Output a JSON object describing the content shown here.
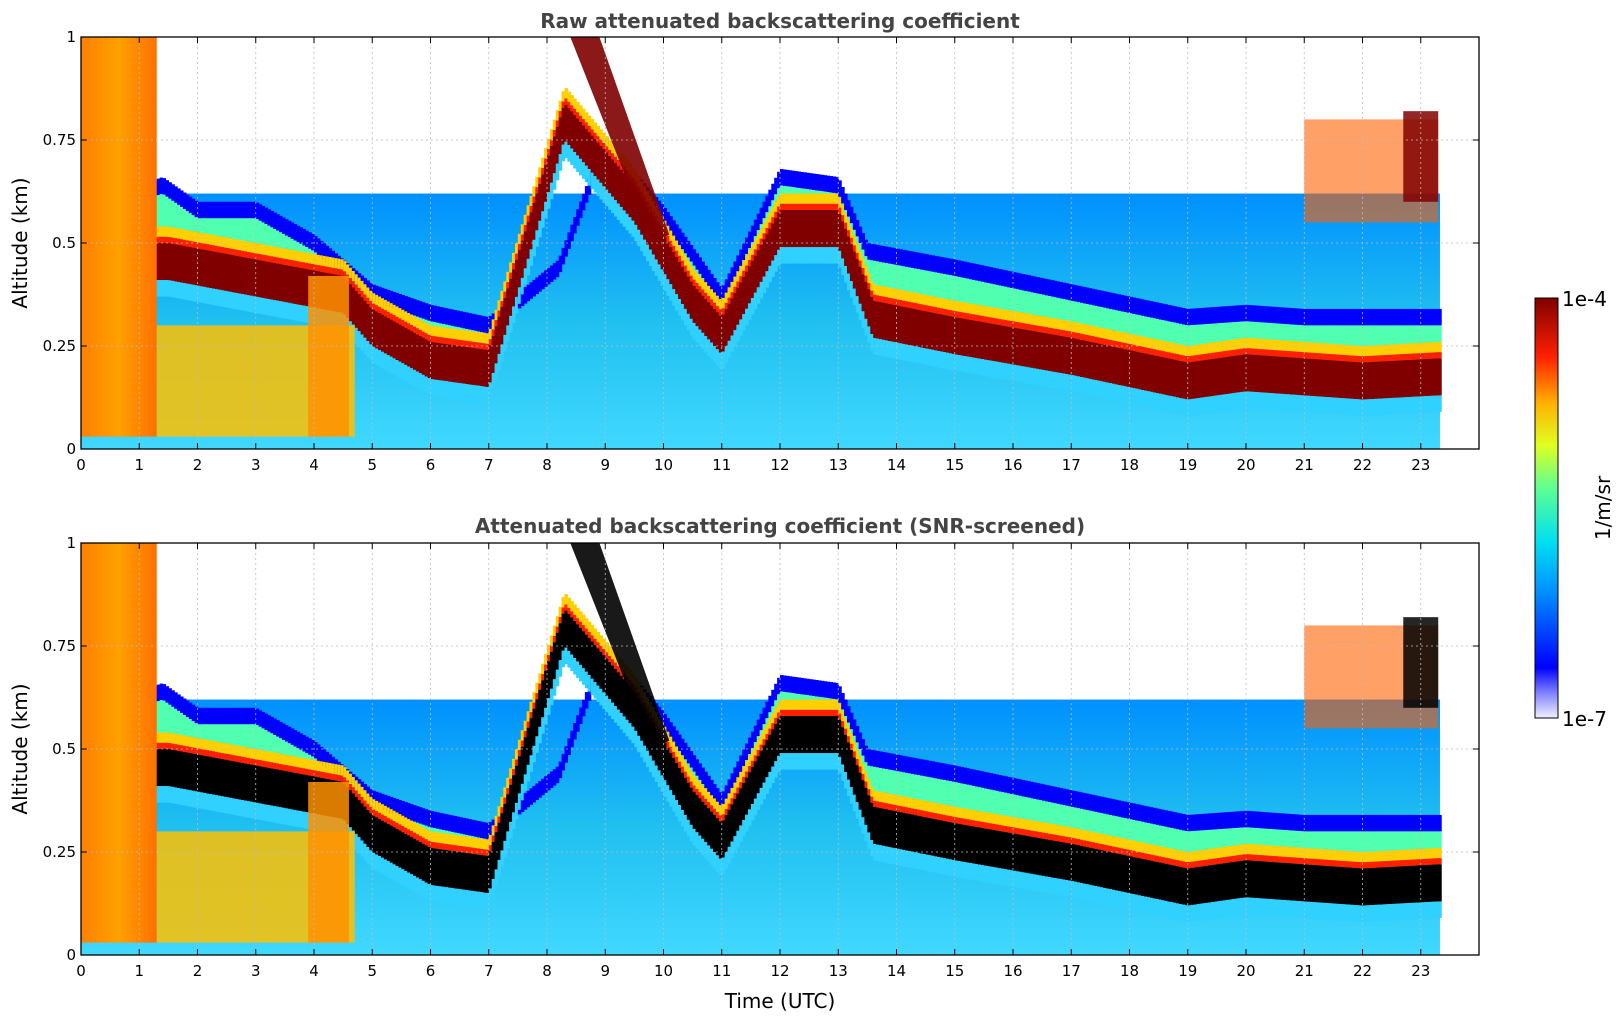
{
  "chart_data": [
    {
      "type": "heatmap",
      "title": "Raw attenuated backscattering coefficient",
      "xlabel": "",
      "ylabel": "Altitude (km)",
      "xlim": [
        0,
        24
      ],
      "ylim": [
        0,
        1
      ],
      "x_ticks": [
        0,
        1,
        2,
        3,
        4,
        5,
        6,
        7,
        8,
        9,
        10,
        11,
        12,
        13,
        14,
        15,
        16,
        17,
        18,
        19,
        20,
        21,
        22,
        23
      ],
      "y_ticks": [
        0,
        0.25,
        0.5,
        0.75,
        1
      ],
      "y_tick_labels": [
        "0",
        "0.25",
        "0.5",
        "0.75",
        "1"
      ],
      "grid": true,
      "data_end_hour": 23.33,
      "layer_top_km": [
        [
          0,
          0.55
        ],
        [
          1.4,
          0.62
        ],
        [
          2,
          0.56
        ],
        [
          3,
          0.56
        ],
        [
          4,
          0.48
        ],
        [
          5,
          0.36
        ],
        [
          6,
          0.31
        ],
        [
          7,
          0.28
        ],
        [
          8.2,
          0.42
        ],
        [
          9,
          0.72
        ],
        [
          10,
          0.55
        ],
        [
          11,
          0.35
        ],
        [
          12,
          0.64
        ],
        [
          13,
          0.62
        ],
        [
          13.5,
          0.46
        ],
        [
          15,
          0.42
        ],
        [
          17,
          0.36
        ],
        [
          19,
          0.3
        ],
        [
          20,
          0.31
        ],
        [
          21,
          0.3
        ],
        [
          22,
          0.3
        ],
        [
          23.3,
          0.3
        ]
      ],
      "layer_peak_km": [
        [
          1.5,
          0.48
        ],
        [
          3,
          0.44
        ],
        [
          4.5,
          0.4
        ],
        [
          5,
          0.32
        ],
        [
          6,
          0.24
        ],
        [
          7,
          0.22
        ],
        [
          8.3,
          0.82
        ],
        [
          9.5,
          0.62
        ],
        [
          10.5,
          0.38
        ],
        [
          11,
          0.3
        ],
        [
          12,
          0.56
        ],
        [
          13,
          0.56
        ],
        [
          13.6,
          0.34
        ],
        [
          15,
          0.3
        ],
        [
          17,
          0.25
        ],
        [
          19,
          0.19
        ],
        [
          20,
          0.21
        ],
        [
          22,
          0.19
        ],
        [
          23.3,
          0.2
        ]
      ],
      "colorbar": {
        "label": "1/m/sr",
        "min_label": "1e-7",
        "max_label": "1e-4",
        "scale": "log"
      }
    },
    {
      "type": "heatmap",
      "title": "Attenuated backscattering coefficient (SNR-screened)",
      "xlabel": "Time (UTC)",
      "ylabel": "Altitude (km)",
      "xlim": [
        0,
        24
      ],
      "ylim": [
        0,
        1
      ],
      "x_ticks": [
        0,
        1,
        2,
        3,
        4,
        5,
        6,
        7,
        8,
        9,
        10,
        11,
        12,
        13,
        14,
        15,
        16,
        17,
        18,
        19,
        20,
        21,
        22,
        23
      ],
      "y_ticks": [
        0,
        0.25,
        0.5,
        0.75,
        1
      ],
      "y_tick_labels": [
        "0",
        "0.25",
        "0.5",
        "0.75",
        "1"
      ],
      "grid": true,
      "data_end_hour": 23.33,
      "saturated_color": "#000000"
    }
  ],
  "colors": {
    "jet_max": "#800000",
    "jet_red": "#ff2000",
    "jet_yellow": "#f0ff10",
    "jet_cyan": "#20e0e0",
    "jet_blue": "#0000ff",
    "jet_min": "#e6e6ff",
    "saturated": "#000000",
    "title": "#444444"
  }
}
